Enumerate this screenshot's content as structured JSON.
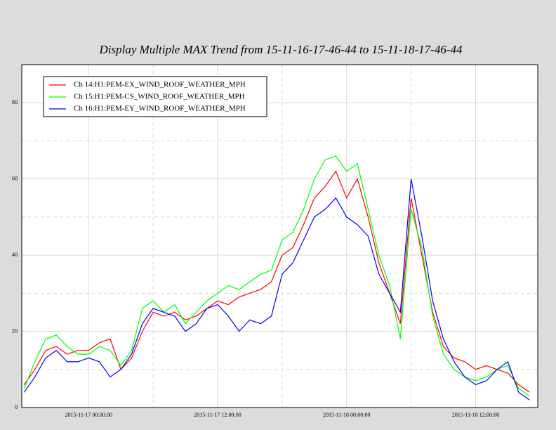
{
  "chart_data": {
    "type": "line",
    "title": "Display Multiple MAX Trend from 15-11-16-17-46-44 to 15-11-18-17-46-44",
    "x": [
      "2015-11-16 18:00:00",
      "2015-11-16 19:00:00",
      "2015-11-16 20:00:00",
      "2015-11-16 21:00:00",
      "2015-11-16 22:00:00",
      "2015-11-16 23:00:00",
      "2015-11-17 00:00:00",
      "2015-11-17 01:00:00",
      "2015-11-17 02:00:00",
      "2015-11-17 03:00:00",
      "2015-11-17 04:00:00",
      "2015-11-17 05:00:00",
      "2015-11-17 06:00:00",
      "2015-11-17 07:00:00",
      "2015-11-17 08:00:00",
      "2015-11-17 09:00:00",
      "2015-11-17 10:00:00",
      "2015-11-17 11:00:00",
      "2015-11-17 12:00:00",
      "2015-11-17 13:00:00",
      "2015-11-17 14:00:00",
      "2015-11-17 15:00:00",
      "2015-11-17 16:00:00",
      "2015-11-17 17:00:00",
      "2015-11-17 18:00:00",
      "2015-11-17 19:00:00",
      "2015-11-17 20:00:00",
      "2015-11-17 21:00:00",
      "2015-11-17 22:00:00",
      "2015-11-17 23:00:00",
      "2015-11-18 00:00:00",
      "2015-11-18 01:00:00",
      "2015-11-18 02:00:00",
      "2015-11-18 03:00:00",
      "2015-11-18 04:00:00",
      "2015-11-18 05:00:00",
      "2015-11-18 06:00:00",
      "2015-11-18 07:00:00",
      "2015-11-18 08:00:00",
      "2015-11-18 09:00:00",
      "2015-11-18 10:00:00",
      "2015-11-18 11:00:00",
      "2015-11-18 12:00:00",
      "2015-11-18 13:00:00",
      "2015-11-18 14:00:00",
      "2015-11-18 15:00:00",
      "2015-11-18 16:00:00",
      "2015-11-18 17:00:00"
    ],
    "series": [
      {
        "name": "Ch 14:H1:PEM-EX_WIND_ROOF_WEATHER_MPH",
        "color": "#ff0000",
        "values": [
          6,
          10,
          15,
          16,
          14,
          15,
          15,
          17,
          18,
          10,
          13,
          20,
          25,
          24,
          25,
          23,
          24,
          26,
          28,
          27,
          29,
          30,
          31,
          33,
          40,
          42,
          48,
          55,
          58,
          62,
          55,
          60,
          50,
          38,
          30,
          22,
          55,
          40,
          25,
          16,
          13,
          12,
          10,
          11,
          10,
          9,
          6,
          4
        ]
      },
      {
        "name": "Ch 15:H1:PEM-CS_WIND_ROOF_WEATHER_MPH",
        "color": "#00ff00",
        "values": [
          5,
          12,
          18,
          19,
          16,
          14,
          14,
          16,
          15,
          11,
          15,
          26,
          28,
          25,
          27,
          22,
          25,
          28,
          30,
          32,
          31,
          33,
          35,
          36,
          44,
          46,
          52,
          60,
          65,
          66,
          62,
          64,
          52,
          40,
          32,
          18,
          52,
          42,
          24,
          14,
          10,
          8,
          7,
          8,
          10,
          11,
          5,
          3
        ]
      },
      {
        "name": "Ch 16:H1:PEM-EY_WIND_ROOF_WEATHER_MPH",
        "color": "#0000ff",
        "values": [
          4,
          8,
          13,
          15,
          12,
          12,
          13,
          12,
          8,
          10,
          14,
          22,
          26,
          25,
          24,
          20,
          22,
          26,
          27,
          24,
          20,
          23,
          22,
          24,
          35,
          38,
          44,
          50,
          52,
          55,
          50,
          48,
          45,
          35,
          30,
          25,
          60,
          45,
          28,
          18,
          12,
          8,
          6,
          7,
          10,
          12,
          4,
          2
        ]
      }
    ],
    "xlim": [
      "2015-11-16 17:46:44",
      "2015-11-18 17:46:44"
    ],
    "xticks": [
      "2015-11-17 00:00:00",
      "2015-11-17 12:00:00",
      "2015-11-18 00:00:00",
      "2015-11-18 12:00:00"
    ],
    "minor_xticks": [
      "2015-11-17 06:00:00",
      "2015-11-17 18:00:00",
      "2015-11-18 06:00:00"
    ],
    "ylim": [
      0,
      90
    ],
    "yticks": [
      0,
      20,
      40,
      60,
      80
    ],
    "minor_yticks": [
      10,
      30,
      50,
      70
    ],
    "grid": true,
    "legend": "upper left"
  }
}
